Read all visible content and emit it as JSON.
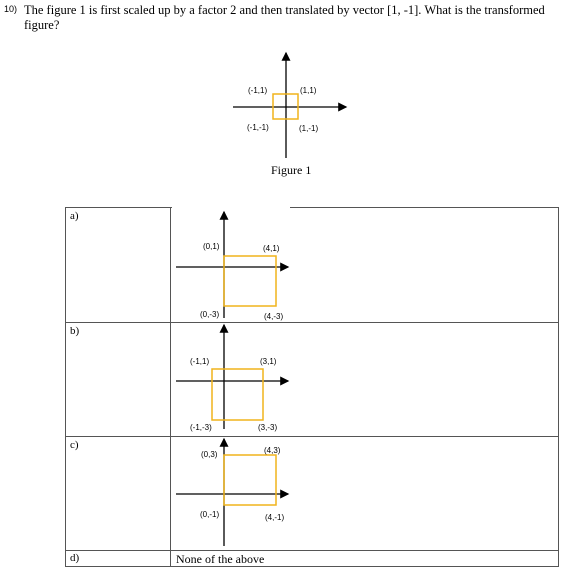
{
  "question": {
    "number": "10)",
    "text": "The figure 1 is first scaled up by a factor 2 and then translated by vector [1, -1]. What is the transformed figure?"
  },
  "figure1": {
    "caption": "Figure 1",
    "labels": {
      "top_left": "(-1,1)",
      "top_right": "(1,1)",
      "bottom_left": "(-1,-1)",
      "bottom_right": "(1,-1)"
    }
  },
  "options": [
    {
      "letter": "a)",
      "labels": {
        "top_left": "(0,1)",
        "top_right": "(4,1)",
        "bottom_left": "(0,-3)",
        "bottom_right": "(4,-3)"
      }
    },
    {
      "letter": "b)",
      "labels": {
        "top_left": "(-1,1)",
        "top_right": "(3,1)",
        "bottom_left": "(-1,-3)",
        "bottom_right": "(3,-3)"
      }
    },
    {
      "letter": "c)",
      "labels": {
        "top_left": "(0,3)",
        "top_right": "(4,3)",
        "bottom_left": "(0,-1)",
        "bottom_right": "(4,-1)"
      }
    },
    {
      "letter": "d)",
      "text": "None of the above"
    }
  ],
  "colors": {
    "square": "#f0b41c",
    "axes": "#000000",
    "table_border": "#555555"
  }
}
